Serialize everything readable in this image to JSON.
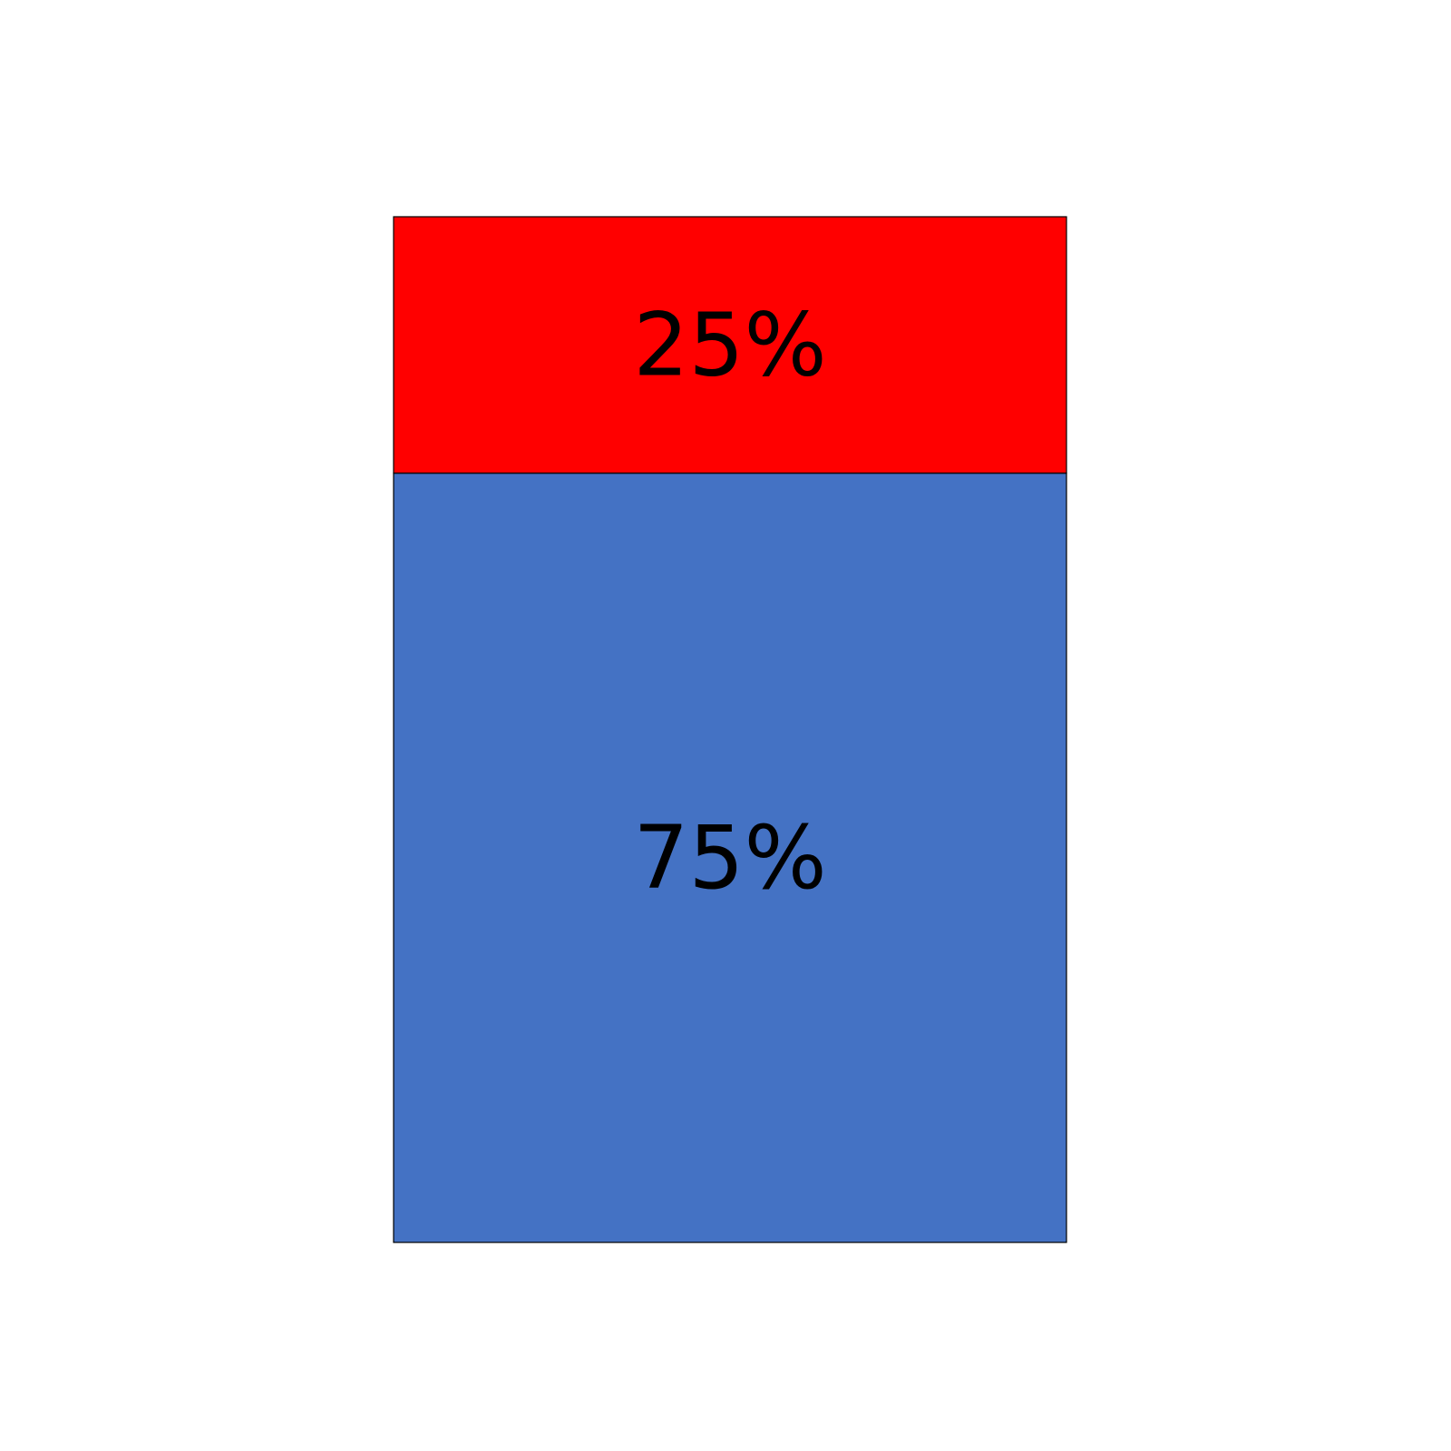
{
  "chart_data": {
    "type": "bar",
    "stacked": true,
    "categories": [
      ""
    ],
    "series": [
      {
        "value": 75,
        "label": "75%",
        "color": "#4472C4"
      },
      {
        "value": 25,
        "label": "25%",
        "color": "#FF0000"
      }
    ],
    "ylim": [
      0,
      100
    ],
    "grid": false,
    "legend": "none"
  }
}
